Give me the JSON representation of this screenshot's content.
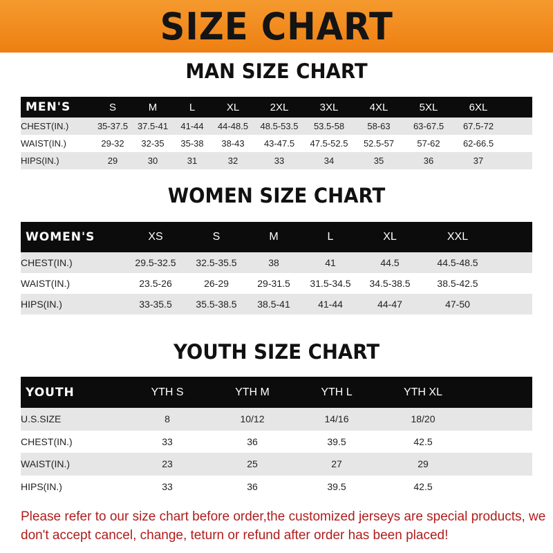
{
  "banner_title": "SIZE CHART",
  "men": {
    "title": "MAN SIZE CHART",
    "header": [
      "MEN'S",
      "S",
      "M",
      "L",
      "XL",
      "2XL",
      "3XL",
      "4XL",
      "5XL",
      "6XL"
    ],
    "rows": [
      [
        "CHEST(IN.)",
        "35-37.5",
        "37.5-41",
        "41-44",
        "44-48.5",
        "48.5-53.5",
        "53.5-58",
        "58-63",
        "63-67.5",
        "67.5-72"
      ],
      [
        "WAIST(IN.)",
        "29-32",
        "32-35",
        "35-38",
        "38-43",
        "43-47.5",
        "47.5-52.5",
        "52.5-57",
        "57-62",
        "62-66.5"
      ],
      [
        "HIPS(IN.)",
        "29",
        "30",
        "31",
        "32",
        "33",
        "34",
        "35",
        "36",
        "37"
      ]
    ]
  },
  "women": {
    "title": "WOMEN SIZE CHART",
    "header": [
      "WOMEN'S",
      "XS",
      "S",
      "M",
      "L",
      "XL",
      "XXL"
    ],
    "rows": [
      [
        "CHEST(IN.)",
        "29.5-32.5",
        "32.5-35.5",
        "38",
        "41",
        "44.5",
        "44.5-48.5"
      ],
      [
        "WAIST(IN.)",
        "23.5-26",
        "26-29",
        "29-31.5",
        "31.5-34.5",
        "34.5-38.5",
        "38.5-42.5"
      ],
      [
        "HIPS(IN.)",
        "33-35.5",
        "35.5-38.5",
        "38.5-41",
        "41-44",
        "44-47",
        "47-50"
      ]
    ]
  },
  "youth": {
    "title": "YOUTH SIZE CHART",
    "header": [
      "YOUTH",
      "YTH S",
      "YTH M",
      "YTH L",
      "YTH XL"
    ],
    "rows": [
      [
        "U.S.SIZE",
        "8",
        "10/12",
        "14/16",
        "18/20"
      ],
      [
        "CHEST(IN.)",
        "33",
        "36",
        "39.5",
        "42.5"
      ],
      [
        "WAIST(IN.)",
        "23",
        "25",
        "27",
        "29"
      ],
      [
        "HIPS(IN.)",
        "33",
        "36",
        "39.5",
        "42.5"
      ]
    ]
  },
  "notice": "Please refer to our size chart before order,the customized jerseys are special products, we don't accept cancel, change, teturn or refund after order has been placed!",
  "colors": {
    "banner": "#f08a1c",
    "header_row": "#0c0c0c",
    "stripe": "#e6e6e6",
    "notice": "#b01c1c"
  }
}
